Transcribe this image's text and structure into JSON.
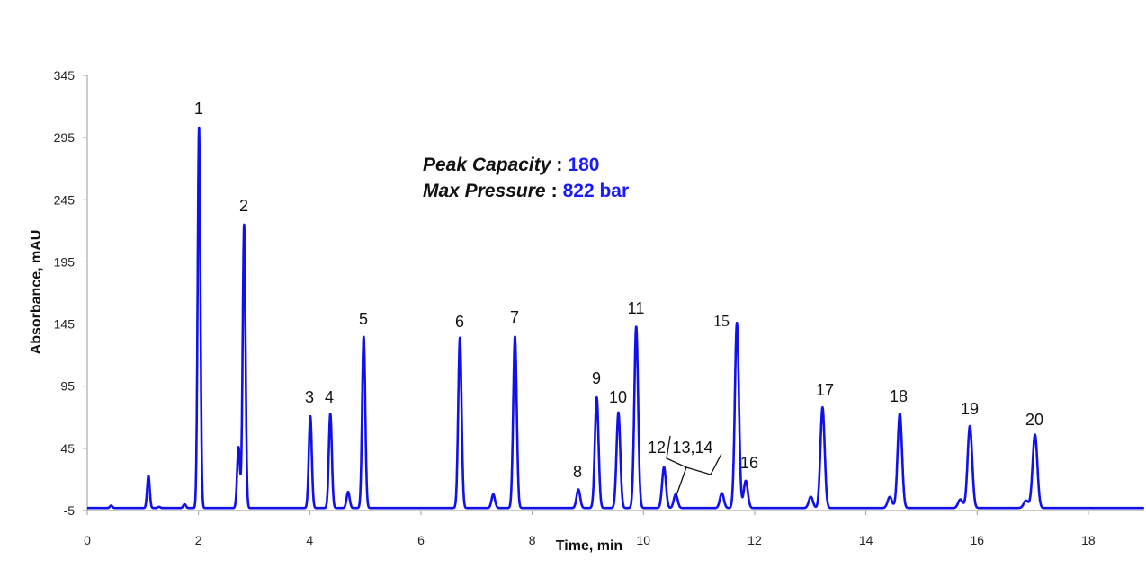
{
  "chart_data": {
    "type": "line",
    "title": "",
    "xlabel": "Time, min",
    "ylabel": "Absorbance, mAU",
    "xlim": [
      0,
      18.6
    ],
    "ylim": [
      -5,
      345
    ],
    "xticks": [
      0,
      2,
      4,
      6,
      8,
      10,
      12,
      14,
      16,
      18
    ],
    "yticks": [
      -5,
      45,
      95,
      145,
      195,
      245,
      295,
      345
    ],
    "grid": false,
    "line_color": "#1010ee",
    "baseline": -3,
    "peaks": [
      {
        "label": "1",
        "t": 2.01,
        "h": 304
      },
      {
        "label": "2",
        "t": 2.82,
        "h": 225
      },
      {
        "label": "3",
        "t": 4.01,
        "h": 71
      },
      {
        "label": "4",
        "t": 4.37,
        "h": 73
      },
      {
        "label": "5",
        "t": 4.97,
        "h": 135
      },
      {
        "label": "6",
        "t": 6.7,
        "h": 134
      },
      {
        "label": "7",
        "t": 7.69,
        "h": 135
      },
      {
        "label": "8",
        "t": 8.83,
        "h": 12
      },
      {
        "label": "9",
        "t": 9.16,
        "h": 86
      },
      {
        "label": "10",
        "t": 9.55,
        "h": 74
      },
      {
        "label": "11",
        "t": 9.87,
        "h": 143
      },
      {
        "label": "12",
        "t": 10.37,
        "h": 30
      },
      {
        "label": "13,14",
        "t": 10.58,
        "h": 8
      },
      {
        "label": "15",
        "t": 11.68,
        "h": 146
      },
      {
        "label": "16",
        "t": 11.84,
        "h": 19
      },
      {
        "label": "17",
        "t": 13.22,
        "h": 78
      },
      {
        "label": "18",
        "t": 14.61,
        "h": 73
      },
      {
        "label": "19",
        "t": 15.87,
        "h": 63
      },
      {
        "label": "20",
        "t": 17.04,
        "h": 56
      }
    ],
    "minor_peaks": [
      {
        "t": 0.43,
        "h": -1
      },
      {
        "t": 1.1,
        "h": 23
      },
      {
        "t": 1.29,
        "h": -2
      },
      {
        "t": 1.75,
        "h": 0
      },
      {
        "t": 2.72,
        "h": 46
      },
      {
        "t": 4.69,
        "h": 10
      },
      {
        "t": 5.88,
        "h": -3
      },
      {
        "t": 7.3,
        "h": 8
      },
      {
        "t": 11.41,
        "h": 9
      },
      {
        "t": 13.01,
        "h": 6
      },
      {
        "t": 14.43,
        "h": 6
      },
      {
        "t": 15.7,
        "h": 4
      },
      {
        "t": 16.88,
        "h": 3
      }
    ]
  },
  "annotation": {
    "peak_capacity_label": "Peak Capacity",
    "peak_capacity_value": "180",
    "max_pressure_label": "Max Pressure",
    "max_pressure_value": "822 bar",
    "separator": ":",
    "value_color": "#1a1aff"
  }
}
